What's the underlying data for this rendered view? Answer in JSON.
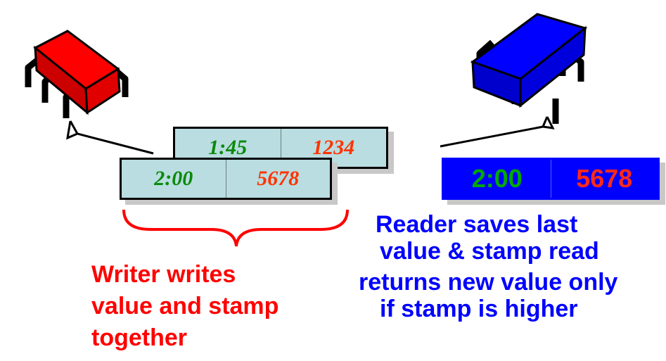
{
  "writer": {
    "old_register": {
      "stamp": "1:45",
      "value": "1234"
    },
    "new_register": {
      "stamp": "2:00",
      "value": "5678"
    },
    "caption": [
      "Writer writes",
      "value and stamp",
      "together"
    ],
    "chip_color": "#ff0000"
  },
  "reader": {
    "register": {
      "stamp": "2:00",
      "value": "5678"
    },
    "caption": [
      "Reader saves last",
      "value & stamp read",
      "returns new value only",
      "if stamp is higher"
    ],
    "chip_color": "#0000ff"
  },
  "icons": [
    "writer-chip-icon",
    "reader-chip-icon",
    "writer-brace-icon"
  ]
}
